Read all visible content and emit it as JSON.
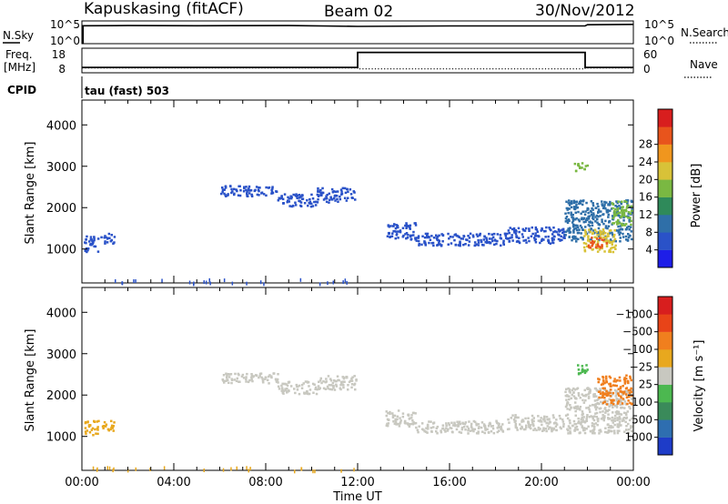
{
  "header": {
    "station": "Kapuskasing (fitACF)",
    "beam": "Beam 02",
    "date": "30/Nov/2012"
  },
  "chart_data": [
    {
      "type": "line",
      "panel": "noise",
      "left_label": "N.Sky",
      "left_ticks": [
        "10^5",
        "10^0"
      ],
      "right_label": "N.Search",
      "right_ticks": [
        "10^5",
        "10^0"
      ],
      "series": [
        {
          "name": "N.Sky",
          "style": "solid",
          "x": [
            0,
            0.05,
            0.05,
            2,
            5,
            9,
            12,
            16,
            20,
            21.9,
            22.0,
            24
          ],
          "y": [
            0,
            0,
            0.85,
            0.86,
            0.85,
            0.86,
            0.82,
            0.84,
            0.84,
            0.84,
            0.9,
            0.92
          ]
        }
      ]
    },
    {
      "type": "line",
      "panel": "frequency",
      "left_label_lines": [
        "Freq.",
        "[MHz]"
      ],
      "left_ticks": [
        "18",
        "8"
      ],
      "right_label": "Nave",
      "right_ticks": [
        "60",
        "0"
      ],
      "ylim": [
        8,
        18
      ],
      "series": [
        {
          "name": "Freq.",
          "style": "solid",
          "x": [
            0,
            12.0,
            12.0,
            21.9,
            21.9,
            24
          ],
          "y": [
            10.2,
            10.2,
            16.3,
            16.3,
            10.2,
            10.2
          ]
        },
        {
          "name": "Nave",
          "style": "dotted",
          "x": [
            0,
            12.0,
            12.0,
            21.9,
            21.9,
            24
          ],
          "y": [
            10.0,
            10.0,
            9.6,
            9.6,
            10.0,
            10.0
          ]
        }
      ]
    },
    {
      "type": "table",
      "panel": "cpid",
      "label": "CPID",
      "text": "tau (fast) 503"
    },
    {
      "type": "heatmap",
      "panel": "power",
      "ylabel": "Slant Range [km]",
      "yticks": [
        1000,
        2000,
        3000,
        4000
      ],
      "ylim": [
        180,
        4600
      ],
      "xlim": [
        0,
        24
      ],
      "colorbar": {
        "label": "Power [dB]",
        "ticks": [
          "4",
          "8",
          "12",
          "16",
          "20",
          "24",
          "28"
        ],
        "colors": [
          "#1e1ee8",
          "#2a52c8",
          "#2f6fa8",
          "#2f8a5a",
          "#7ab842",
          "#d8c238",
          "#f0961e",
          "#e8541c",
          "#d81e1e"
        ]
      },
      "regions": [
        {
          "t0": 0.05,
          "t1": 0.7,
          "r0": 950,
          "r1": 1350,
          "level": 1
        },
        {
          "t0": 0.8,
          "t1": 1.4,
          "r0": 1150,
          "r1": 1400,
          "level": 1
        },
        {
          "t0": 6.0,
          "t1": 8.5,
          "r0": 2300,
          "r1": 2550,
          "level": 1
        },
        {
          "t0": 8.5,
          "t1": 10.2,
          "r0": 2050,
          "r1": 2350,
          "level": 1
        },
        {
          "t0": 10.2,
          "t1": 11.9,
          "r0": 2150,
          "r1": 2500,
          "level": 1
        },
        {
          "t0": 13.2,
          "t1": 14.5,
          "r0": 1250,
          "r1": 1650,
          "level": 1
        },
        {
          "t0": 14.5,
          "t1": 18.5,
          "r0": 1100,
          "r1": 1400,
          "level": 1
        },
        {
          "t0": 18.5,
          "t1": 21.0,
          "r0": 1150,
          "r1": 1550,
          "level": 1
        },
        {
          "t0": 21.0,
          "t1": 23.9,
          "r0": 1200,
          "r1": 2200,
          "level": 2
        },
        {
          "t0": 21.8,
          "t1": 23.2,
          "r0": 950,
          "r1": 1500,
          "level": 5
        },
        {
          "t0": 22.0,
          "t1": 22.8,
          "r0": 1050,
          "r1": 1300,
          "level": 7
        },
        {
          "t0": 23.0,
          "t1": 23.9,
          "r0": 1600,
          "r1": 2200,
          "level": 4
        },
        {
          "t0": 21.4,
          "t1": 22.0,
          "r0": 2900,
          "r1": 3100,
          "level": 4
        },
        {
          "t0": 0.0,
          "t1": 12.0,
          "r0": 190,
          "r1": 300,
          "level": 1
        }
      ]
    },
    {
      "type": "heatmap",
      "panel": "velocity",
      "ylabel": "Slant Range [km]",
      "yticks": [
        1000,
        2000,
        3000,
        4000
      ],
      "ylim": [
        180,
        4600
      ],
      "xlim": [
        0,
        24
      ],
      "xticks": [
        "00:00",
        "04:00",
        "08:00",
        "12:00",
        "16:00",
        "20:00",
        "00:00"
      ],
      "xlabel": "Time UT",
      "colorbar": {
        "label": "Velocity [m s⁻¹]",
        "ticks": [
          "1000",
          "500",
          "100",
          "25",
          "−25",
          "−100",
          "−500",
          "−1000"
        ],
        "colors": [
          "#1e3cc8",
          "#2e6eb0",
          "#3a8a5a",
          "#4cb850",
          "#c8c8c0",
          "#e8a81e",
          "#f07f1e",
          "#e84418",
          "#d81e1e"
        ]
      },
      "regions": [
        {
          "t0": 0.05,
          "t1": 0.7,
          "r0": 1050,
          "r1": 1400,
          "level": 5
        },
        {
          "t0": 0.8,
          "t1": 1.4,
          "r0": 1150,
          "r1": 1400,
          "level": 5
        },
        {
          "t0": 6.0,
          "t1": 8.5,
          "r0": 2300,
          "r1": 2550,
          "level": 4
        },
        {
          "t0": 8.5,
          "t1": 10.2,
          "r0": 2050,
          "r1": 2350,
          "level": 4
        },
        {
          "t0": 10.2,
          "t1": 11.9,
          "r0": 2150,
          "r1": 2500,
          "level": 4
        },
        {
          "t0": 13.2,
          "t1": 14.5,
          "r0": 1250,
          "r1": 1650,
          "level": 4
        },
        {
          "t0": 14.5,
          "t1": 18.5,
          "r0": 1100,
          "r1": 1400,
          "level": 4
        },
        {
          "t0": 18.5,
          "t1": 21.0,
          "r0": 1150,
          "r1": 1550,
          "level": 4
        },
        {
          "t0": 21.0,
          "t1": 23.9,
          "r0": 1100,
          "r1": 2200,
          "level": 4
        },
        {
          "t0": 21.5,
          "t1": 22.0,
          "r0": 2500,
          "r1": 2800,
          "level": 3
        },
        {
          "t0": 22.4,
          "t1": 23.9,
          "r0": 1800,
          "r1": 2500,
          "level": 6
        },
        {
          "t0": 0.0,
          "t1": 12.0,
          "r0": 190,
          "r1": 300,
          "level": 5
        }
      ]
    }
  ]
}
